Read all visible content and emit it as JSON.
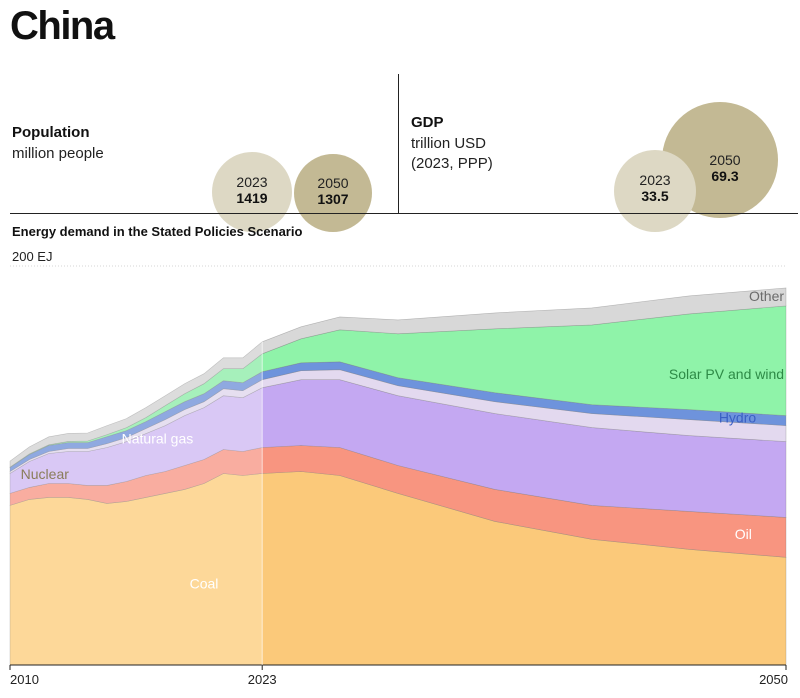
{
  "title": "China",
  "population": {
    "title": "Population",
    "subtitle": "million people",
    "bubbles": [
      {
        "year": "2023",
        "value": "1419",
        "color": "#ddd8c4"
      },
      {
        "year": "2050",
        "value": "1307",
        "color": "#c3b994"
      }
    ]
  },
  "gdp": {
    "title": "GDP",
    "subtitle_line1": "trillion USD",
    "subtitle_line2": "(2023, PPP)",
    "bubbles": [
      {
        "year": "2050",
        "value": "69.3",
        "color": "#c3b994"
      },
      {
        "year": "2023",
        "value": "33.5",
        "color": "#ddd8c4"
      }
    ]
  },
  "chart_data": {
    "type": "area",
    "title": "Energy demand in the Stated Policies Scenario",
    "unit_label": "200 EJ",
    "ylim": [
      0,
      200
    ],
    "x": [
      2010,
      2011,
      2012,
      2013,
      2014,
      2015,
      2016,
      2017,
      2018,
      2019,
      2020,
      2021,
      2022,
      2023,
      2025,
      2027,
      2030,
      2035,
      2040,
      2045,
      2050
    ],
    "x_tick_labels": [
      "2010",
      "2023",
      "2050"
    ],
    "projection_start": 2023,
    "series": [
      {
        "name": "Coal",
        "color": "#fbc97a",
        "values": [
          80,
          83,
          84,
          84,
          83,
          81,
          82,
          84,
          86,
          88,
          91,
          96,
          95,
          96,
          97,
          95,
          86,
          72,
          63,
          58,
          54
        ]
      },
      {
        "name": "Oil",
        "color": "#f89580",
        "values": [
          6,
          6,
          7,
          7,
          7,
          9,
          10,
          11,
          11,
          12,
          12,
          12,
          12,
          13,
          13,
          14,
          14,
          16,
          17,
          19,
          20
        ]
      },
      {
        "name": "Natural gas",
        "color": "#c4a8f2",
        "values": [
          10,
          13,
          15,
          16,
          17,
          19,
          20,
          21,
          23,
          25,
          26,
          27,
          27,
          30,
          33,
          34,
          35,
          38,
          39,
          38,
          38
        ]
      },
      {
        "name": "Nuclear",
        "color": "#e3d9ef",
        "values": [
          1,
          1,
          1,
          1.5,
          1.5,
          2,
          2,
          2.5,
          3,
          3,
          3,
          3.5,
          3.5,
          4,
          4.5,
          5,
          5,
          6,
          7,
          8,
          8
        ]
      },
      {
        "name": "Hydro",
        "color": "#6e93dc",
        "values": [
          2,
          2.5,
          3,
          3,
          3,
          3.5,
          3.5,
          3.5,
          4,
          4,
          4,
          4,
          4,
          4,
          4,
          4,
          4,
          4.5,
          4.5,
          5,
          5
        ]
      },
      {
        "name": "Solar PV and wind",
        "color": "#8ff3a9",
        "values": [
          0.2,
          0.3,
          0.4,
          0.6,
          0.8,
          1,
          1.5,
          2,
          3,
          4,
          5,
          6,
          7,
          9,
          12,
          16,
          22,
          32,
          40,
          48,
          55
        ]
      },
      {
        "name": "Other",
        "color": "#d8d8d8",
        "values": [
          3,
          3.5,
          4,
          4,
          4,
          4.5,
          4.5,
          5,
          5,
          5,
          5,
          5.5,
          5.5,
          6,
          6,
          6.5,
          7,
          8,
          8.5,
          9,
          9
        ]
      }
    ],
    "historical_colors": {
      "Coal": "#fdd899",
      "Oil": "#f9ada0",
      "Natural gas": "#d9c8f5",
      "Nuclear": "#e6dff0",
      "Hydro": "#8fa9e0",
      "Solar PV and wind": "#a6f0bb",
      "Other": "#dcdcdc"
    },
    "series_labels": [
      {
        "name": "Coal",
        "text": "Coal",
        "color": "#ffffff"
      },
      {
        "name": "Oil",
        "text": "Oil",
        "color": "#ffffff"
      },
      {
        "name": "Natural gas",
        "text": "Natural gas",
        "color": "#ffffff"
      },
      {
        "name": "Nuclear",
        "text": "Nuclear",
        "color": "#8a7d5a"
      },
      {
        "name": "Hydro",
        "text": "Hydro",
        "color": "#3a5fc4"
      },
      {
        "name": "Solar PV and wind",
        "text": "Solar PV and wind",
        "color": "#2d8a46"
      },
      {
        "name": "Other",
        "text": "Other",
        "color": "#6b6b6b"
      }
    ]
  }
}
